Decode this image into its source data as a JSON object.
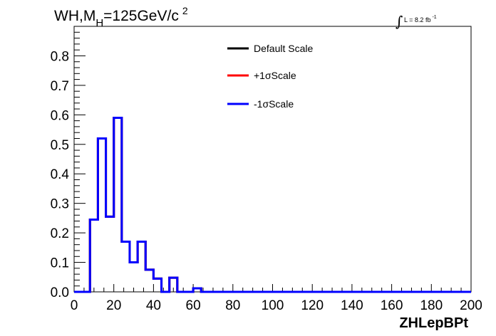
{
  "chart_data": {
    "type": "line",
    "title_main": "WH,M",
    "title_sub": "H",
    "title_rest": "=125GeV/c",
    "title_sup": "2",
    "lumi_label": "L = 8.2 fb",
    "lumi_sup": "-1",
    "xlabel": "ZHLepBPt",
    "ylabel": "",
    "xlim": [
      0,
      200
    ],
    "ylim": [
      0,
      0.9
    ],
    "xticks": [
      0,
      20,
      40,
      60,
      80,
      100,
      120,
      140,
      160,
      180,
      200
    ],
    "yticks": [
      0.0,
      0.1,
      0.2,
      0.3,
      0.4,
      0.5,
      0.6,
      0.7,
      0.8
    ],
    "ytick_labels": [
      "0.0",
      "0.1",
      "0.2",
      "0.3",
      "0.4",
      "0.5",
      "0.6",
      "0.7",
      "0.8"
    ],
    "bin_edges": [
      0,
      4,
      8,
      12,
      16,
      20,
      24,
      28,
      32,
      36,
      40,
      44,
      48,
      52,
      56,
      60,
      64,
      68,
      72,
      76,
      80,
      84,
      88,
      92,
      96,
      100,
      104,
      108,
      112,
      116,
      120,
      124,
      128,
      132,
      136,
      140,
      144,
      148,
      152,
      156,
      160,
      164,
      168,
      172,
      176,
      180,
      184,
      188,
      192,
      196,
      200
    ],
    "legend_position": "top-center",
    "series": [
      {
        "name": "Default Scale",
        "color": "#000000",
        "values": [
          0,
          0,
          0.245,
          0.52,
          0.255,
          0.59,
          0.17,
          0.1,
          0.17,
          0.075,
          0.045,
          0,
          0.048,
          0,
          0,
          0.012,
          0,
          0,
          0,
          0,
          0,
          0,
          0,
          0,
          0,
          0,
          0,
          0,
          0,
          0,
          0,
          0,
          0,
          0,
          0,
          0,
          0,
          0,
          0,
          0,
          0,
          0,
          0,
          0,
          0,
          0,
          0,
          0,
          0,
          0
        ]
      },
      {
        "name": "+1σScale",
        "color": "#ff0000",
        "values": [
          0,
          0,
          0.245,
          0.52,
          0.255,
          0.59,
          0.17,
          0.1,
          0.17,
          0.075,
          0.045,
          0,
          0.048,
          0,
          0,
          0.012,
          0,
          0,
          0,
          0,
          0,
          0,
          0,
          0,
          0,
          0,
          0,
          0,
          0,
          0,
          0,
          0,
          0,
          0,
          0,
          0,
          0,
          0,
          0,
          0,
          0,
          0,
          0,
          0,
          0,
          0,
          0,
          0,
          0,
          0
        ]
      },
      {
        "name": "-1σScale",
        "color": "#0000ff",
        "values": [
          0,
          0,
          0.245,
          0.52,
          0.255,
          0.59,
          0.17,
          0.1,
          0.17,
          0.075,
          0.045,
          0,
          0.048,
          0,
          0,
          0.012,
          0,
          0,
          0,
          0,
          0,
          0,
          0,
          0,
          0,
          0,
          0,
          0,
          0,
          0,
          0,
          0,
          0,
          0,
          0,
          0,
          0,
          0,
          0,
          0,
          0,
          0,
          0,
          0,
          0,
          0,
          0,
          0,
          0,
          0
        ]
      }
    ]
  }
}
